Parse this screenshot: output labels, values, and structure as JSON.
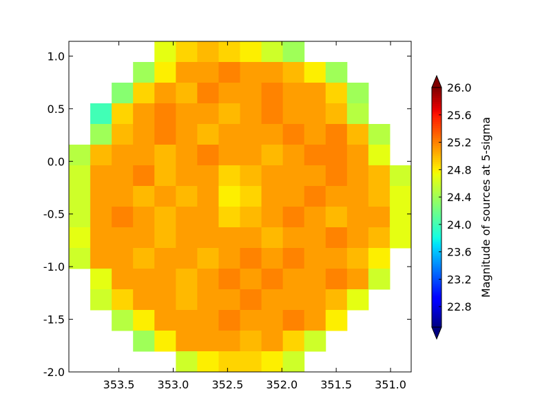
{
  "chart_data": {
    "type": "heatmap",
    "colormap": "jet",
    "colorbar_label": "Magnitude of sources at 5-sigma",
    "xlim": [
      353.96,
      350.81
    ],
    "ylim": [
      -2.0,
      1.14
    ],
    "extent": [
      353.96,
      350.81,
      -2.0,
      1.14
    ],
    "xticks": [
      353.5,
      {
        "value": 353,
        "label": "353.0"
      },
      352.5,
      {
        "value": 352,
        "label": "352.0"
      },
      351.5,
      {
        "value": 351,
        "label": "351.0"
      }
    ],
    "yticks": [
      {
        "value": 1,
        "label": "1.0"
      },
      0.5,
      {
        "value": 0,
        "label": "0.0"
      },
      -0.5,
      {
        "value": -1,
        "label": "-1.0"
      },
      -1.5,
      {
        "value": -2,
        "label": "-2.0"
      }
    ],
    "clim": [
      22.5,
      26.0
    ],
    "cticks": [
      22.8,
      23.2,
      23.6,
      {
        "value": 24,
        "label": "24.0"
      },
      24.4,
      24.8,
      25.2,
      25.6,
      {
        "value": 26,
        "label": "26.0"
      }
    ],
    "z": [
      [
        null,
        null,
        null,
        null,
        24.7,
        24.9,
        25.0,
        24.9,
        24.8,
        24.6,
        24.4,
        null,
        null,
        null,
        null,
        null
      ],
      [
        null,
        null,
        null,
        24.4,
        24.8,
        25.1,
        25.1,
        25.2,
        25.1,
        25.1,
        25.0,
        24.8,
        24.4,
        null,
        null,
        null
      ],
      [
        null,
        null,
        24.3,
        24.9,
        25.1,
        25.0,
        25.2,
        25.1,
        25.1,
        25.2,
        25.1,
        25.1,
        24.9,
        24.4,
        null,
        null
      ],
      [
        null,
        24.0,
        24.9,
        25.1,
        25.2,
        25.1,
        25.1,
        25.0,
        25.1,
        25.2,
        25.1,
        25.1,
        25.0,
        24.5,
        null,
        null
      ],
      [
        null,
        24.4,
        25.0,
        25.1,
        25.2,
        25.1,
        25.0,
        25.1,
        25.1,
        25.1,
        25.2,
        25.1,
        25.2,
        25.0,
        24.5,
        null
      ],
      [
        24.5,
        25.0,
        25.1,
        25.1,
        25.0,
        25.1,
        25.2,
        25.1,
        25.1,
        25.0,
        25.1,
        25.2,
        25.2,
        25.1,
        24.7,
        null
      ],
      [
        24.6,
        25.1,
        25.1,
        25.2,
        25.0,
        25.1,
        25.1,
        24.9,
        25.0,
        25.1,
        25.1,
        25.1,
        25.2,
        25.1,
        25.0,
        24.6
      ],
      [
        24.6,
        25.1,
        25.1,
        25.0,
        25.1,
        25.0,
        25.1,
        24.8,
        24.9,
        25.1,
        25.1,
        25.2,
        25.1,
        25.1,
        25.0,
        24.7
      ],
      [
        24.6,
        25.1,
        25.2,
        25.1,
        25.0,
        25.1,
        25.1,
        24.9,
        25.0,
        25.1,
        25.2,
        25.1,
        25.0,
        25.1,
        25.1,
        24.7
      ],
      [
        24.7,
        25.1,
        25.1,
        25.1,
        25.0,
        25.1,
        25.1,
        25.1,
        25.1,
        25.0,
        25.1,
        25.1,
        25.2,
        25.1,
        25.0,
        24.7
      ],
      [
        24.6,
        25.1,
        25.1,
        25.0,
        25.1,
        25.1,
        25.0,
        25.1,
        25.2,
        25.1,
        25.2,
        25.1,
        25.1,
        25.0,
        24.8,
        null
      ],
      [
        null,
        24.7,
        25.1,
        25.1,
        25.1,
        25.0,
        25.1,
        25.2,
        25.1,
        25.2,
        25.1,
        25.1,
        25.2,
        25.1,
        24.6,
        null
      ],
      [
        null,
        24.6,
        24.9,
        25.1,
        25.1,
        25.0,
        25.1,
        25.1,
        25.2,
        25.1,
        25.1,
        25.1,
        25.0,
        24.7,
        null,
        null
      ],
      [
        null,
        null,
        24.5,
        24.8,
        25.1,
        25.1,
        25.1,
        25.2,
        25.1,
        25.1,
        25.2,
        25.1,
        24.8,
        null,
        null,
        null
      ],
      [
        null,
        null,
        null,
        24.4,
        24.8,
        25.1,
        25.1,
        25.1,
        25.0,
        25.1,
        24.9,
        24.6,
        null,
        null,
        null,
        null
      ],
      [
        null,
        null,
        null,
        null,
        null,
        24.6,
        24.8,
        24.9,
        24.9,
        24.8,
        24.6,
        null,
        null,
        null,
        null,
        null
      ]
    ]
  }
}
